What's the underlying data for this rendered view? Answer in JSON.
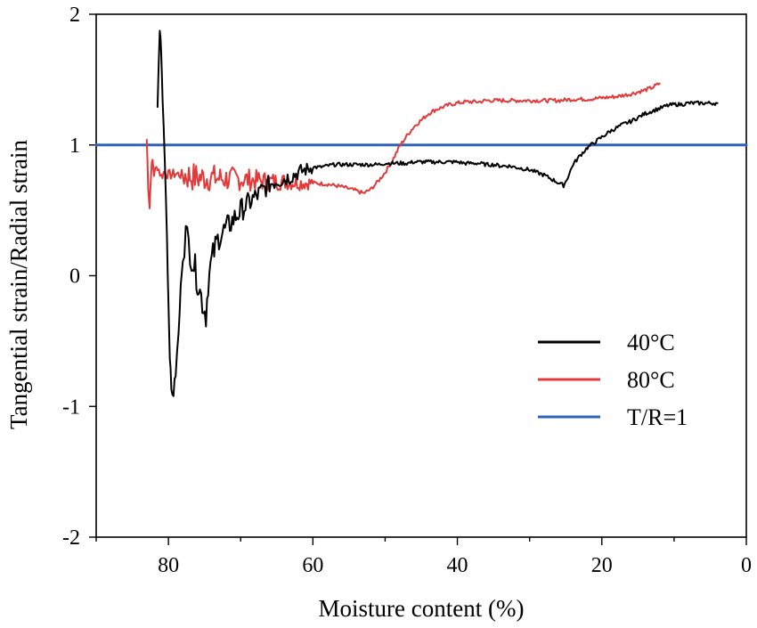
{
  "chart_data": {
    "type": "line",
    "title": "",
    "xlabel": "Moisture content (%)",
    "ylabel": "Tangential strain/Radial strain",
    "xlim": [
      90,
      0
    ],
    "ylim": [
      -2,
      2
    ],
    "x_ticks": [
      80,
      60,
      40,
      20,
      0
    ],
    "x_minor_ticks": [
      90,
      70,
      50,
      30,
      10
    ],
    "y_ticks": [
      -2,
      -1,
      0,
      1,
      2
    ],
    "legend_position": "lower-right",
    "series": [
      {
        "name": "40°C",
        "color": "#000000",
        "noise": true,
        "points": [
          [
            81.5,
            1.3
          ],
          [
            81.2,
            1.9
          ],
          [
            81.0,
            1.7
          ],
          [
            80.8,
            1.35
          ],
          [
            80.5,
            0.9
          ],
          [
            80.2,
            0.3
          ],
          [
            80.0,
            -0.2
          ],
          [
            79.8,
            -0.6
          ],
          [
            79.6,
            -0.88
          ],
          [
            79.3,
            -0.9
          ],
          [
            79.0,
            -0.75
          ],
          [
            78.6,
            -0.45
          ],
          [
            78.3,
            -0.1
          ],
          [
            78.0,
            0.2
          ],
          [
            77.6,
            0.32
          ],
          [
            77.2,
            0.25
          ],
          [
            76.8,
            0.15
          ],
          [
            76.3,
            0.05
          ],
          [
            75.8,
            -0.08
          ],
          [
            75.3,
            -0.2
          ],
          [
            74.8,
            -0.3
          ],
          [
            74.5,
            -0.05
          ],
          [
            74.0,
            0.12
          ],
          [
            73.5,
            0.22
          ],
          [
            73.0,
            0.3
          ],
          [
            72.0,
            0.36
          ],
          [
            71.0,
            0.43
          ],
          [
            70.0,
            0.5
          ],
          [
            69.0,
            0.55
          ],
          [
            68.0,
            0.6
          ],
          [
            67.0,
            0.65
          ],
          [
            66.0,
            0.7
          ],
          [
            65.0,
            0.73
          ],
          [
            64.0,
            0.74
          ],
          [
            63.0,
            0.76
          ],
          [
            62.0,
            0.79
          ],
          [
            61.0,
            0.81
          ],
          [
            60.0,
            0.83
          ],
          [
            59.0,
            0.83
          ],
          [
            58.0,
            0.84
          ],
          [
            57.0,
            0.85
          ],
          [
            56.0,
            0.85
          ],
          [
            55.0,
            0.85
          ],
          [
            54.0,
            0.85
          ],
          [
            53.0,
            0.85
          ],
          [
            52.0,
            0.85
          ],
          [
            51.0,
            0.85
          ],
          [
            50.0,
            0.86
          ],
          [
            49.0,
            0.86
          ],
          [
            48.0,
            0.86
          ],
          [
            47.0,
            0.86
          ],
          [
            46.0,
            0.87
          ],
          [
            45.0,
            0.87
          ],
          [
            44.0,
            0.87
          ],
          [
            43.0,
            0.87
          ],
          [
            42.0,
            0.87
          ],
          [
            41.0,
            0.87
          ],
          [
            40.0,
            0.87
          ],
          [
            39.0,
            0.86
          ],
          [
            38.0,
            0.86
          ],
          [
            37.0,
            0.86
          ],
          [
            36.0,
            0.85
          ],
          [
            35.0,
            0.85
          ],
          [
            34.0,
            0.84
          ],
          [
            33.0,
            0.84
          ],
          [
            32.0,
            0.83
          ],
          [
            31.0,
            0.82
          ],
          [
            30.0,
            0.81
          ],
          [
            29.0,
            0.79
          ],
          [
            28.0,
            0.77
          ],
          [
            27.0,
            0.74
          ],
          [
            26.0,
            0.71
          ],
          [
            25.3,
            0.69
          ],
          [
            25.0,
            0.72
          ],
          [
            24.5,
            0.78
          ],
          [
            24.0,
            0.85
          ],
          [
            23.0,
            0.92
          ],
          [
            22.0,
            0.98
          ],
          [
            21.0,
            1.02
          ],
          [
            20.0,
            1.06
          ],
          [
            19.0,
            1.1
          ],
          [
            18.0,
            1.13
          ],
          [
            17.0,
            1.16
          ],
          [
            16.0,
            1.18
          ],
          [
            15.0,
            1.21
          ],
          [
            14.0,
            1.24
          ],
          [
            13.0,
            1.26
          ],
          [
            12.0,
            1.28
          ],
          [
            11.0,
            1.3
          ],
          [
            10.0,
            1.31
          ],
          [
            9.0,
            1.31
          ],
          [
            8.0,
            1.32
          ],
          [
            7.0,
            1.32
          ],
          [
            6.0,
            1.32
          ],
          [
            5.0,
            1.32
          ],
          [
            4.0,
            1.32
          ]
        ]
      },
      {
        "name": "80°C",
        "color": "#e23a3a",
        "noise": true,
        "points": [
          [
            83.0,
            1.04
          ],
          [
            82.8,
            0.7
          ],
          [
            82.6,
            0.52
          ],
          [
            82.4,
            0.8
          ],
          [
            82.2,
            0.88
          ],
          [
            82.0,
            0.78
          ],
          [
            81.5,
            0.84
          ],
          [
            81.0,
            0.76
          ],
          [
            80.5,
            0.8
          ],
          [
            80.0,
            0.77
          ],
          [
            79.0,
            0.78
          ],
          [
            78.0,
            0.77
          ],
          [
            77.0,
            0.76
          ],
          [
            76.0,
            0.75
          ],
          [
            74.0,
            0.75
          ],
          [
            72.0,
            0.74
          ],
          [
            70.0,
            0.74
          ],
          [
            68.0,
            0.73
          ],
          [
            66.0,
            0.72
          ],
          [
            64.0,
            0.72
          ],
          [
            62.0,
            0.71
          ],
          [
            60.0,
            0.71
          ],
          [
            58.0,
            0.7
          ],
          [
            56.0,
            0.68
          ],
          [
            54.0,
            0.65
          ],
          [
            53.0,
            0.63
          ],
          [
            52.0,
            0.66
          ],
          [
            51.0,
            0.72
          ],
          [
            50.0,
            0.79
          ],
          [
            49.0,
            0.88
          ],
          [
            48.0,
            0.99
          ],
          [
            47.0,
            1.07
          ],
          [
            46.0,
            1.14
          ],
          [
            45.0,
            1.19
          ],
          [
            44.0,
            1.24
          ],
          [
            43.0,
            1.27
          ],
          [
            42.0,
            1.29
          ],
          [
            41.0,
            1.31
          ],
          [
            40.0,
            1.32
          ],
          [
            39.0,
            1.33
          ],
          [
            38.0,
            1.33
          ],
          [
            37.0,
            1.33
          ],
          [
            36.0,
            1.34
          ],
          [
            34.0,
            1.34
          ],
          [
            32.0,
            1.34
          ],
          [
            30.0,
            1.34
          ],
          [
            28.0,
            1.34
          ],
          [
            26.0,
            1.34
          ],
          [
            24.0,
            1.35
          ],
          [
            22.0,
            1.35
          ],
          [
            20.0,
            1.36
          ],
          [
            18.0,
            1.37
          ],
          [
            16.0,
            1.39
          ],
          [
            14.0,
            1.42
          ],
          [
            13.0,
            1.44
          ],
          [
            12.0,
            1.47
          ]
        ]
      },
      {
        "name": "T/R=1",
        "color": "#2f63b5",
        "noise": false,
        "points": [
          [
            90,
            1.0
          ],
          [
            0,
            1.0
          ]
        ]
      }
    ]
  }
}
